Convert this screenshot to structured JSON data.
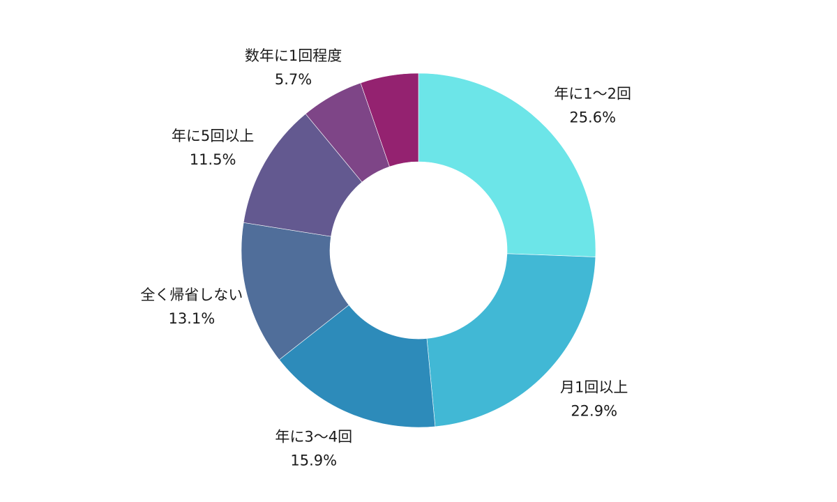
{
  "chart_data": {
    "type": "pie",
    "variant": "donut",
    "start_angle_deg": 0,
    "direction": "clockwise",
    "slices": [
      {
        "label": "年に1～2回",
        "value": 25.6,
        "value_label": "25.6%",
        "color": "#6ce5e8"
      },
      {
        "label": "月1回以上",
        "value": 22.9,
        "value_label": "22.9%",
        "color": "#41b8d5"
      },
      {
        "label": "年に3～4回",
        "value": 15.9,
        "value_label": "15.9%",
        "color": "#2d8bba"
      },
      {
        "label": "全く帰省しない",
        "value": 13.1,
        "value_label": "13.1%",
        "color": "#506e9a"
      },
      {
        "label": "年に5回以上",
        "value": 11.5,
        "value_label": "11.5%",
        "color": "#635990"
      },
      {
        "label": "数年に1回程度",
        "value": 5.7,
        "value_label": "5.7%",
        "color": "#7e4587"
      },
      {
        "label": "",
        "value": 5.3,
        "value_label": "",
        "color": "#942270"
      }
    ],
    "title": "",
    "legend": "none"
  }
}
